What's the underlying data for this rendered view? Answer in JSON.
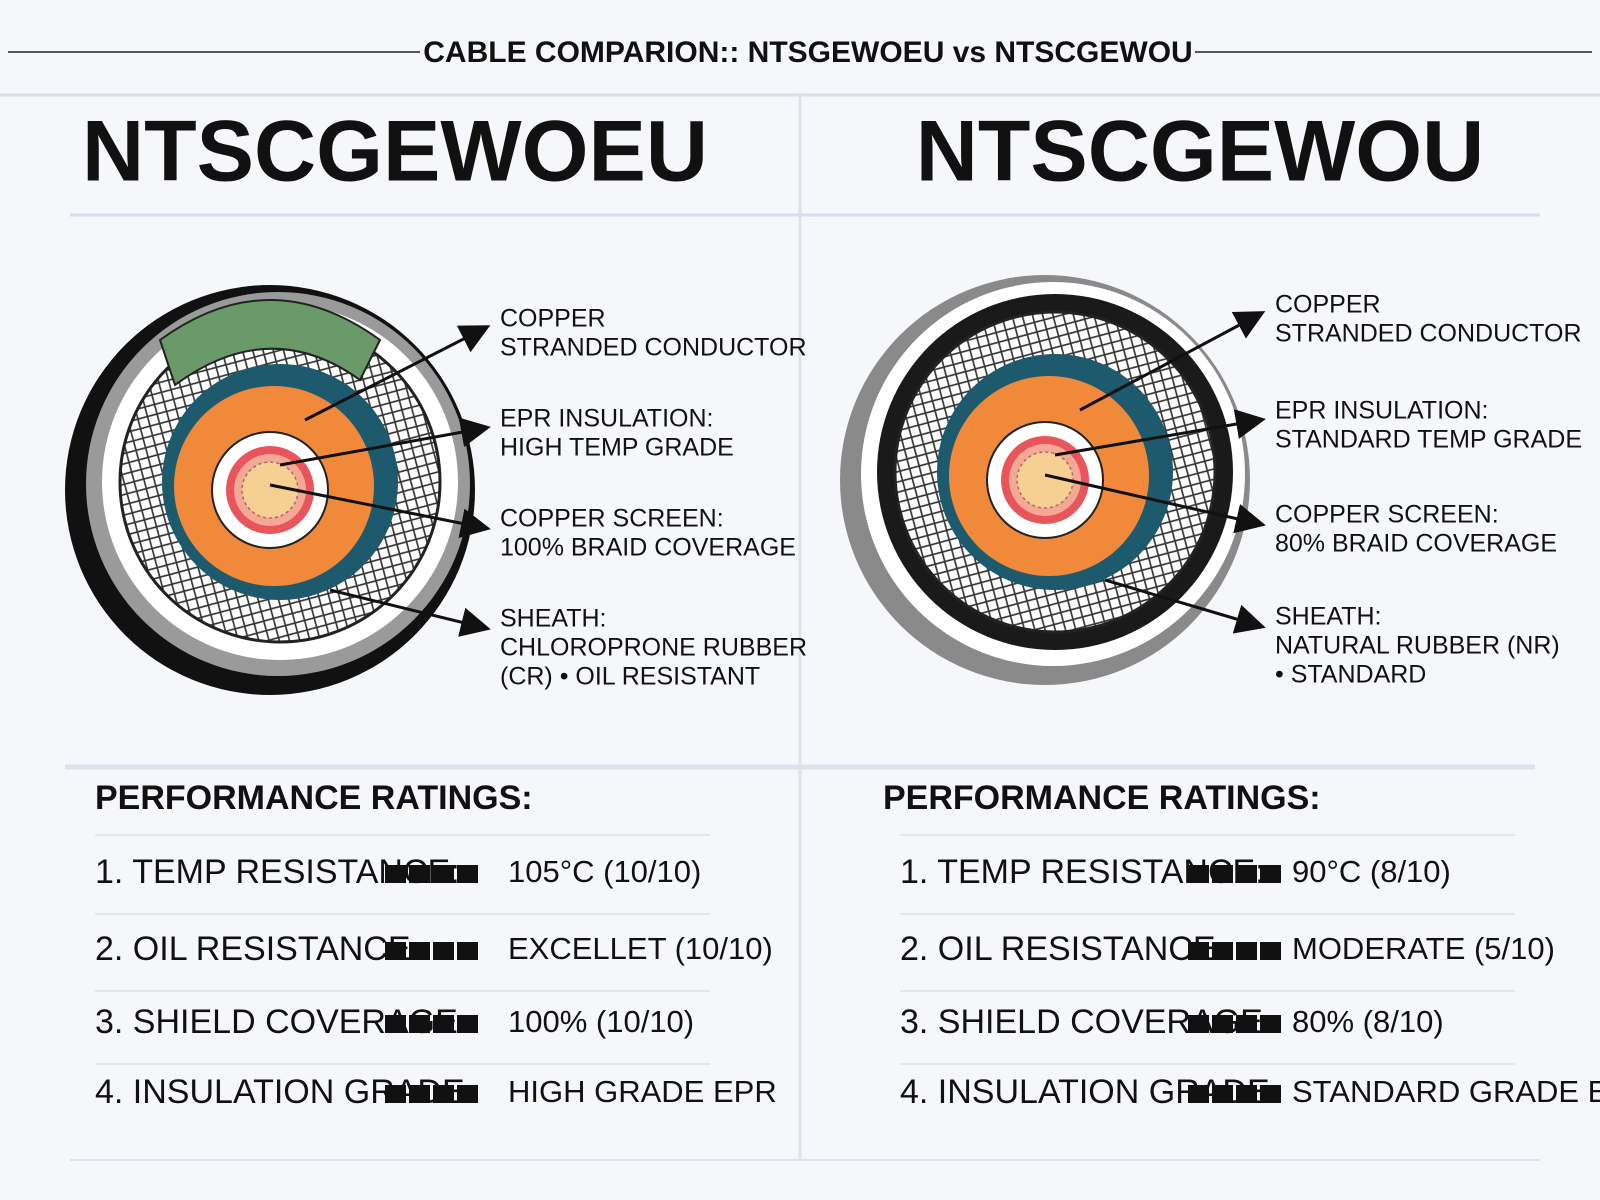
{
  "header": {
    "title": "CABLE COMPARION:: NTSGEWOEU vs NTSCGEWOU"
  },
  "panels": [
    {
      "name": "NTSCGEWOEU",
      "labels": [
        [
          "COPPER",
          "STRANDED CONDUCTOR"
        ],
        [
          "EPR INSULATION:",
          "HIGH TEMP GRADE"
        ],
        [
          "COPPER SCREEN:",
          "100% BRAID COVERAGE"
        ],
        [
          "SHEATH:",
          "CHLOROPRONE RUBBER",
          "(CR) • OIL RESISTANT"
        ]
      ],
      "ratings_title": "PERFORMANCE RATINGS:",
      "ratings": [
        {
          "label": "1. TEMP RESISTANCE:",
          "value": "105°C (10/10)"
        },
        {
          "label": "2. OIL RESISTANCE:",
          "value": "EXCELLET (10/10)"
        },
        {
          "label": "3. SHIELD COVERAGE:",
          "value": "100% (10/10)"
        },
        {
          "label": "4. INSULATION GRADE:",
          "value": "HIGH GRADE EPR"
        }
      ]
    },
    {
      "name": "NTSCGEWOU",
      "labels": [
        [
          "COPPER",
          "STRANDED CONDUCTOR"
        ],
        [
          "EPR INSULATION:",
          "STANDARD TEMP GRADE"
        ],
        [
          "COPPER SCREEN:",
          "80% BRAID COVERAGE"
        ],
        [
          "SHEATH:",
          "NATURAL RUBBER (NR)",
          "• STANDARD"
        ]
      ],
      "ratings_title": "PERFORMANCE RATINGS:",
      "ratings": [
        {
          "label": "1. TEMP RESISTANCE:",
          "value": "90°C (8/10)"
        },
        {
          "label": "2. OIL RESISTANCE:",
          "value": "MODERATE (5/10)"
        },
        {
          "label": "3. SHIELD COVERAGE:",
          "value": "80% (8/10)"
        },
        {
          "label": "4. INSULATION GRADE:",
          "value": "STANDARD GRADE EPR"
        }
      ]
    }
  ]
}
